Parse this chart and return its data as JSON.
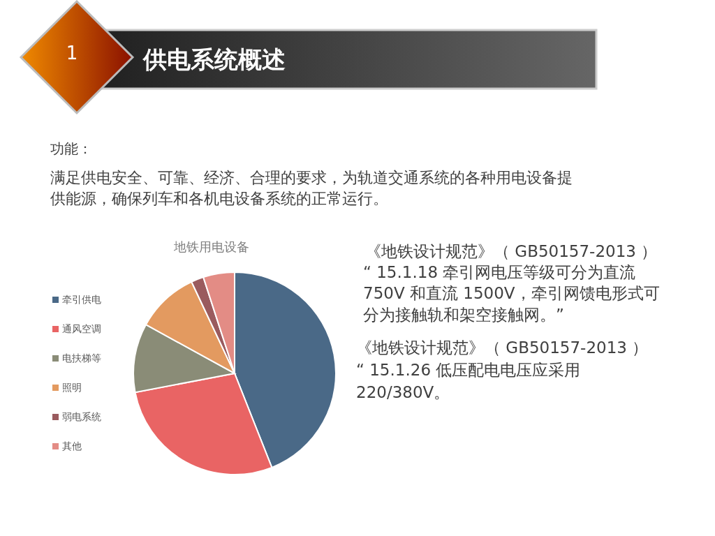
{
  "chart_data": {
    "type": "pie",
    "title": "地铁用电设备",
    "categories": [
      "牵引供电",
      "通风空调",
      "电扶梯等",
      "照明",
      "弱电系统",
      "其他"
    ],
    "values": [
      44,
      28,
      11,
      10,
      2,
      5
    ],
    "colors": [
      "#4a6987",
      "#e96464",
      "#8a8c77",
      "#e39a60",
      "#9a5b5e",
      "#e38c85"
    ],
    "legend": "left",
    "annotations": [
      "1",
      "供电系统概述",
      "功能：",
      "满足供电安全、可靠、经济、合理的要求，为轨道交通系统的各种用电设备提",
      "供能源，确保列车和各机电设备系统的正常运行。",
      "《地铁设计规范》（ GB50157-2013 ）",
      "“ 15.1.18  牵引网电压等级可分为直流",
      "750V 和直流 1500V，牵引网馈电形式可",
      "分为接触轨和架空接触网。”",
      "《地铁设计规范》（ GB50157-2013 ）",
      "“ 15.1.26  低压配电电压应采用",
      "220/380V。"
    ]
  }
}
